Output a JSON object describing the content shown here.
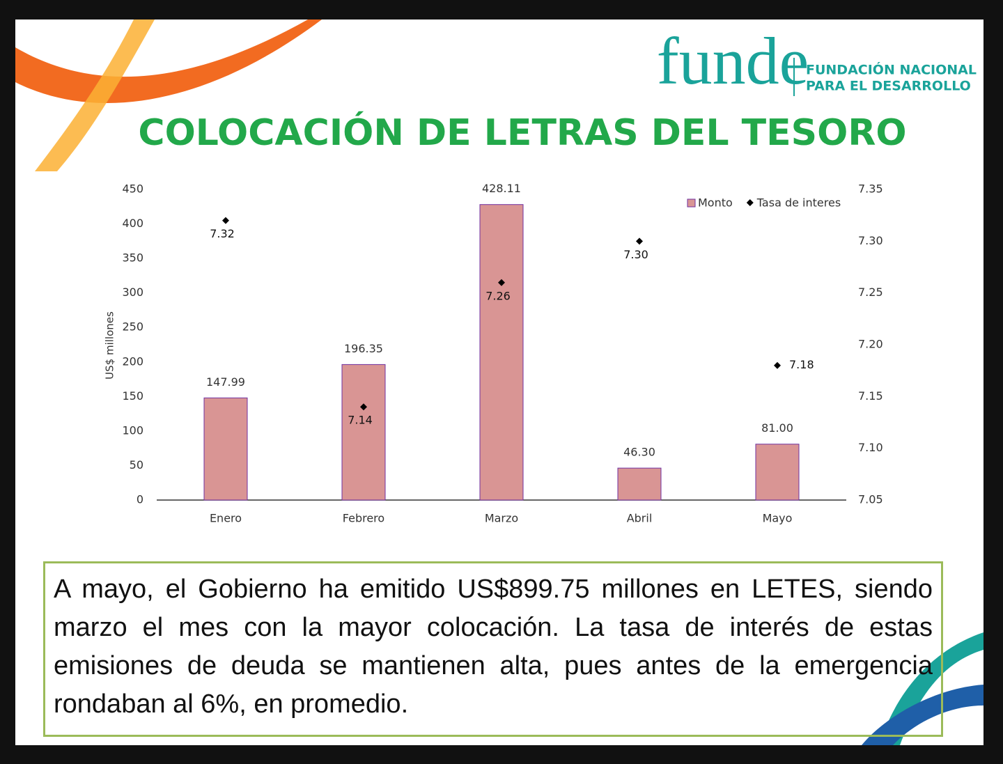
{
  "logo": {
    "name": "funde",
    "line1": "FUNDACIÓN NACIONAL",
    "line2": "PARA EL DESARROLLO"
  },
  "chart_data": {
    "type": "bar",
    "title": "COLOCACIÓN DE LETRAS DEL TESORO",
    "y_label": "US$ millones",
    "categories": [
      "Enero",
      "Febrero",
      "Marzo",
      "Abril",
      "Mayo"
    ],
    "series": [
      {
        "name": "Monto",
        "type": "bar",
        "color": "#d99594",
        "values": [
          147.99,
          196.35,
          428.11,
          46.3,
          81
        ],
        "value_labels": [
          "147.99",
          "196.35",
          "428.11",
          "46.30",
          "81.00"
        ]
      },
      {
        "name": "Tasa de interes",
        "type": "scatter",
        "axis": "y2",
        "color": "#000000",
        "values": [
          7.32,
          7.14,
          7.26,
          7.3,
          7.18
        ],
        "value_labels": [
          "7.32",
          "7.14",
          "7.26",
          "7.30",
          "7.18"
        ]
      }
    ],
    "ylim": [
      0,
      450
    ],
    "yticks": [
      0,
      50,
      100,
      150,
      200,
      250,
      300,
      350,
      400,
      450
    ],
    "y2lim": [
      7.05,
      7.35
    ],
    "y2ticks": [
      7.05,
      {
        "value": 7.1,
        "label": "7.10"
      },
      7.15,
      {
        "value": 7.2,
        "label": "7.20"
      },
      7.25,
      {
        "value": 7.3,
        "label": "7.30"
      },
      7.35
    ],
    "legend": "top-right"
  },
  "note": "A mayo, el Gobierno ha emitido US$899.75 millones en LETES, siendo marzo el mes con la mayor colocación. La tasa de interés de estas emisiones de deuda se mantienen alta, pues antes de la emergencia rondaban al 6%, en promedio."
}
